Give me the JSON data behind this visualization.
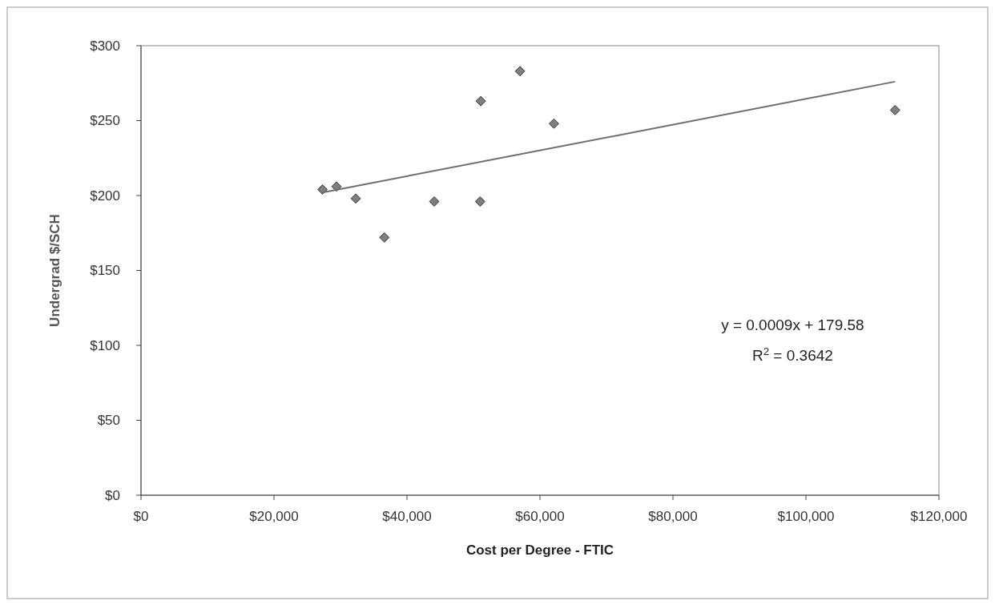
{
  "chart_data": {
    "type": "scatter",
    "xlabel": "Cost per Degree - FTIC",
    "ylabel": "Undergrad $/SCH",
    "xlim": [
      0,
      120000
    ],
    "xticks": [
      {
        "value": 0,
        "label": "$0"
      },
      {
        "value": 20000,
        "label": "$20,000"
      },
      {
        "value": 40000,
        "label": "$40,000"
      },
      {
        "value": 60000,
        "label": "$60,000"
      },
      {
        "value": 80000,
        "label": "$80,000"
      },
      {
        "value": 100000,
        "label": "$100,000"
      },
      {
        "value": 120000,
        "label": "$120,000"
      }
    ],
    "ylim": [
      0,
      300
    ],
    "yticks": [
      {
        "value": 0,
        "label": "$0"
      },
      {
        "value": 50,
        "label": "$50"
      },
      {
        "value": 100,
        "label": "$100"
      },
      {
        "value": 150,
        "label": "$150"
      },
      {
        "value": 200,
        "label": "$200"
      },
      {
        "value": 250,
        "label": "$250"
      },
      {
        "value": 300,
        "label": "$300"
      }
    ],
    "grid": false,
    "marker": "diamond",
    "series": [
      {
        "color": "#7f7f7f",
        "x": [
          27300,
          29400,
          32300,
          36600,
          44100,
          51000,
          51100,
          57000,
          62100,
          113400
        ],
        "values": [
          204,
          206,
          198,
          172,
          196,
          196,
          263,
          283,
          248,
          257
        ]
      },
      {
        "type": "line",
        "color": "#6e6e6e",
        "marker": "none",
        "line_style": "solid",
        "x": [
          27300,
          113400
        ],
        "values": [
          202,
          276
        ]
      }
    ],
    "annotations": [
      "y = 0.0009x + 179.58",
      "R$^{2}$ = 0.3642"
    ]
  }
}
